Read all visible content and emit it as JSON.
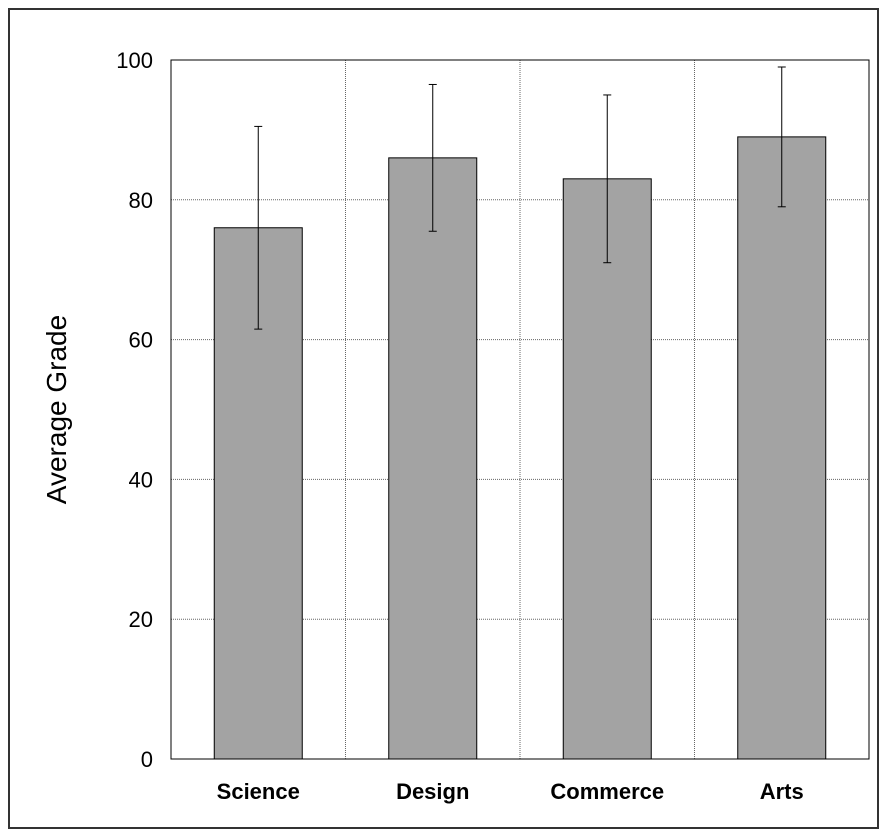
{
  "chart_data": {
    "type": "bar",
    "title": "",
    "xlabel": "",
    "ylabel": "Average Grade",
    "categories": [
      "Science",
      "Design",
      "Commerce",
      "Arts"
    ],
    "series": [
      {
        "values": [
          76,
          86,
          83,
          89
        ],
        "error": [
          [
            61.5,
            90.5
          ],
          [
            75.5,
            96.5
          ],
          [
            71,
            95
          ],
          [
            79,
            99
          ]
        ]
      }
    ],
    "ylim": [
      0,
      100
    ],
    "yticks": [
      "0",
      "20",
      "40",
      "60",
      "80",
      "100"
    ],
    "grid": true,
    "legend": "none",
    "colors": {
      "bar_fill": "#a3a3a3",
      "bar_stroke": "#000000",
      "grid": "#666666",
      "frame": "#333333"
    }
  }
}
